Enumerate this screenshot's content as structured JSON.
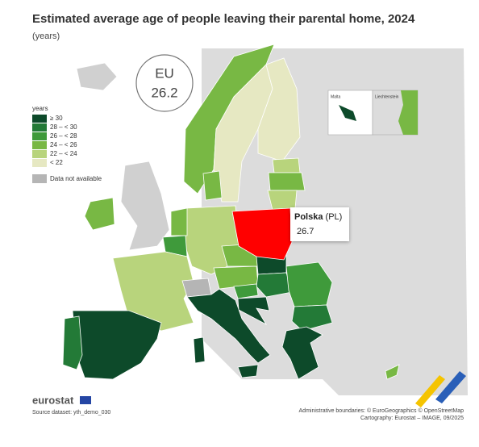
{
  "header": {
    "title": "Estimated average age of people leaving their parental home, 2024",
    "subtitle": "(years)"
  },
  "eu_badge": {
    "label": "EU",
    "value": 26.2
  },
  "legend": {
    "title": "years",
    "items": [
      {
        "label": "≥ 30",
        "color": "#0d4a2a"
      },
      {
        "label": "28 – < 30",
        "color": "#237a37"
      },
      {
        "label": "26 – < 28",
        "color": "#3f9a3b"
      },
      {
        "label": "24 – < 26",
        "color": "#78b844"
      },
      {
        "label": "22 – < 24",
        "color": "#b8d47c"
      },
      {
        "label": "< 22",
        "color": "#e6e8c2"
      }
    ],
    "not_available": {
      "label": "Data not available",
      "color": "#b5b5b5"
    }
  },
  "tooltip": {
    "country": "Polska",
    "code": "(PL)",
    "value": 26.7,
    "color": "#ff0000"
  },
  "insets": {
    "malta": "Malta",
    "liechtenstein": "Liechtenstein"
  },
  "footer": {
    "logo": "eurostat",
    "source": "Source dataset: yth_demo_030",
    "boundaries": "Administrative boundaries: © EuroGeographics © OpenStreetMap",
    "cartography": "Cartography: Eurostat – IMAGE, 09/2025"
  }
}
